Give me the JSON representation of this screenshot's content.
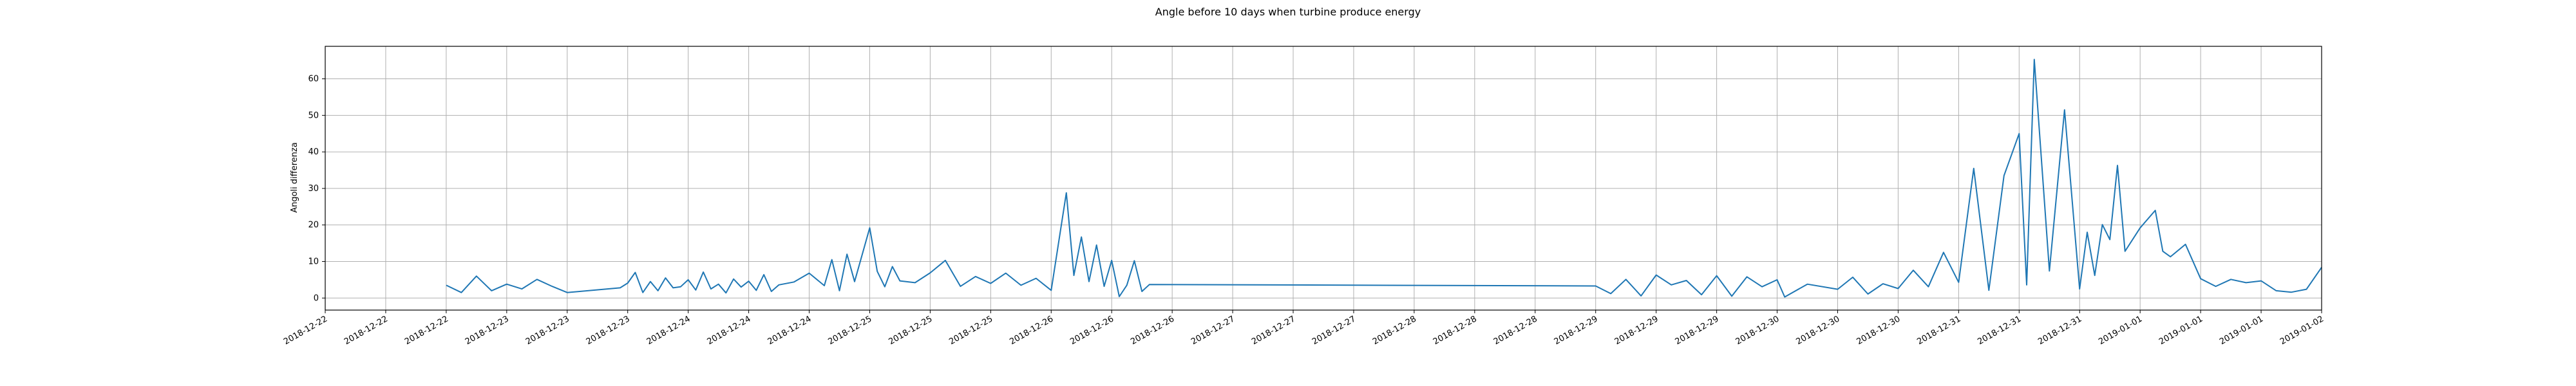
{
  "chart_data": {
    "type": "line",
    "title": "Angle before 10 days when turbine produce energy",
    "xlabel": "",
    "ylabel": "Angoli differenza",
    "x_tick_labels": [
      "2018-12-22",
      "2018-12-22",
      "2018-12-22",
      "2018-12-23",
      "2018-12-23",
      "2018-12-23",
      "2018-12-24",
      "2018-12-24",
      "2018-12-24",
      "2018-12-25",
      "2018-12-25",
      "2018-12-25",
      "2018-12-26",
      "2018-12-26",
      "2018-12-26",
      "2018-12-27",
      "2018-12-27",
      "2018-12-27",
      "2018-12-28",
      "2018-12-28",
      "2018-12-28",
      "2018-12-29",
      "2018-12-29",
      "2018-12-29",
      "2018-12-30",
      "2018-12-30",
      "2018-12-30",
      "2018-12-31",
      "2018-12-31",
      "2018-12-31",
      "2019-01-01",
      "2019-01-01",
      "2019-01-01",
      "2019-01-02"
    ],
    "y_ticks": [
      0,
      10,
      20,
      30,
      40,
      50,
      60
    ],
    "ylim": [
      -3.3,
      68.9
    ],
    "xlim": [
      "2018-12-22T00:00",
      "2019-01-02T00:00"
    ],
    "grid": true,
    "line_color": "#1f77b4",
    "series": [
      {
        "x": [
          "2018-12-22T16:00",
          "2018-12-22T18:00",
          "2018-12-22T20:00",
          "2018-12-22T22:00",
          "2018-12-23T00:00",
          "2018-12-23T02:00",
          "2018-12-23T04:00",
          "2018-12-23T06:00",
          "2018-12-23T08:00",
          "2018-12-23T15:00",
          "2018-12-23T16:00",
          "2018-12-23T17:00",
          "2018-12-23T18:00",
          "2018-12-23T19:00",
          "2018-12-23T20:00",
          "2018-12-23T21:00",
          "2018-12-23T22:00",
          "2018-12-23T23:00",
          "2018-12-24T00:00",
          "2018-12-24T01:00",
          "2018-12-24T02:00",
          "2018-12-24T03:00",
          "2018-12-24T04:00",
          "2018-12-24T05:00",
          "2018-12-24T06:00",
          "2018-12-24T07:00",
          "2018-12-24T08:00",
          "2018-12-24T09:00",
          "2018-12-24T10:00",
          "2018-12-24T11:00",
          "2018-12-24T12:00",
          "2018-12-24T14:00",
          "2018-12-24T16:00",
          "2018-12-24T18:00",
          "2018-12-24T19:00",
          "2018-12-24T20:00",
          "2018-12-24T21:00",
          "2018-12-24T22:00",
          "2018-12-25T00:00",
          "2018-12-25T01:00",
          "2018-12-25T02:00",
          "2018-12-25T03:00",
          "2018-12-25T04:00",
          "2018-12-25T06:00",
          "2018-12-25T08:00",
          "2018-12-25T10:00",
          "2018-12-25T12:00",
          "2018-12-25T14:00",
          "2018-12-25T16:00",
          "2018-12-25T18:00",
          "2018-12-25T20:00",
          "2018-12-25T22:00",
          "2018-12-26T00:00",
          "2018-12-26T02:00",
          "2018-12-26T03:00",
          "2018-12-26T04:00",
          "2018-12-26T05:00",
          "2018-12-26T06:00",
          "2018-12-26T07:00",
          "2018-12-26T08:00",
          "2018-12-26T09:00",
          "2018-12-26T10:00",
          "2018-12-26T11:00",
          "2018-12-26T12:00",
          "2018-12-26T13:00",
          "2018-12-29T00:00",
          "2018-12-29T02:00",
          "2018-12-29T04:00",
          "2018-12-29T06:00",
          "2018-12-29T08:00",
          "2018-12-29T10:00",
          "2018-12-29T12:00",
          "2018-12-29T14:00",
          "2018-12-29T16:00",
          "2018-12-29T18:00",
          "2018-12-29T20:00",
          "2018-12-29T22:00",
          "2018-12-30T00:00",
          "2018-12-30T01:00",
          "2018-12-30T04:00",
          "2018-12-30T08:00",
          "2018-12-30T10:00",
          "2018-12-30T12:00",
          "2018-12-30T14:00",
          "2018-12-30T16:00",
          "2018-12-30T18:00",
          "2018-12-30T20:00",
          "2018-12-30T22:00",
          "2018-12-31T00:00",
          "2018-12-31T02:00",
          "2018-12-31T04:00",
          "2018-12-31T06:00",
          "2018-12-31T08:00",
          "2018-12-31T09:00",
          "2018-12-31T10:00",
          "2018-12-31T12:00",
          "2018-12-31T14:00",
          "2018-12-31T16:00",
          "2018-12-31T17:00",
          "2018-12-31T18:00",
          "2018-12-31T19:00",
          "2018-12-31T20:00",
          "2018-12-31T21:00",
          "2018-12-31T22:00",
          "2019-01-01T00:00",
          "2019-01-01T02:00",
          "2019-01-01T03:00",
          "2019-01-01T04:00",
          "2019-01-01T06:00",
          "2019-01-01T08:00",
          "2019-01-01T10:00",
          "2019-01-01T12:00",
          "2019-01-01T14:00",
          "2019-01-01T16:00",
          "2019-01-01T18:00",
          "2019-01-01T20:00",
          "2019-01-01T22:00",
          "2019-01-02T00:00"
        ],
        "y": [
          3.5,
          1.5,
          6,
          2,
          3.8,
          2.5,
          5.1,
          3.2,
          1.5,
          2.8,
          4.1,
          7,
          1.5,
          4.5,
          2,
          5.5,
          2.8,
          3.1,
          5,
          2.2,
          7.1,
          2.5,
          3.8,
          1.4,
          5.2,
          3,
          4.6,
          2.1,
          6.4,
          1.8,
          3.6,
          4.4,
          6.8,
          3.4,
          10.5,
          2,
          12,
          4.5,
          19.2,
          7.3,
          3.1,
          8.6,
          4.7,
          4.2,
          6.9,
          10.3,
          3.2,
          5.9,
          4,
          6.8,
          3.5,
          5.4,
          2.1,
          28.8,
          6.2,
          16.7,
          4.5,
          14.5,
          3.2,
          10.3,
          0.4,
          3.5,
          10.2,
          1.8,
          3.7,
          3.3,
          1.2,
          5.1,
          0.6,
          6.3,
          3.6,
          4.8,
          0.9,
          6.1,
          0.5,
          5.8,
          3.1,
          5,
          0.3,
          3.8,
          2.4,
          5.7,
          1.1,
          3.9,
          2.6,
          7.6,
          3.1,
          12.5,
          4.3,
          35.5,
          2.1,
          33.5,
          45,
          3.6,
          65.3,
          7.4,
          51.5,
          2.5,
          18,
          6.2,
          20.1,
          16,
          36.3,
          12.8,
          19.2,
          24,
          12.8,
          11.3,
          14.7,
          5.3,
          3.2,
          5.1,
          4.2,
          4.7,
          2,
          1.6,
          2.4,
          8.4
        ]
      }
    ]
  }
}
